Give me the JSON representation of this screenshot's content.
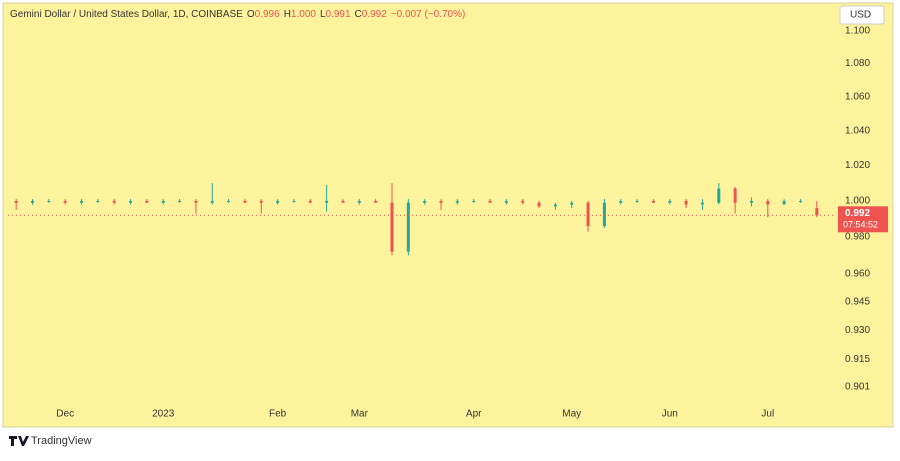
{
  "chart_data": {
    "type": "candlestick",
    "categories": [
      null,
      null,
      null,
      "Dec",
      null,
      null,
      null,
      null,
      null,
      "2023",
      null,
      null,
      null,
      null,
      null,
      null,
      "Feb",
      null,
      null,
      null,
      null,
      "Mar",
      null,
      null,
      null,
      null,
      null,
      null,
      "Apr",
      null,
      null,
      null,
      null,
      null,
      "May",
      null,
      null,
      null,
      null,
      null,
      "Jun",
      null,
      null,
      null,
      null,
      null,
      "Jul",
      null,
      null,
      null
    ],
    "open": [
      1.0,
      0.999,
      1.0,
      1.0,
      0.999,
      1.0,
      1.0,
      0.999,
      1.0,
      0.999,
      1.0,
      1.0,
      0.999,
      1.0,
      1.0,
      1.0,
      0.999,
      1.0,
      1.0,
      0.999,
      1.0,
      0.999,
      1.0,
      0.999,
      0.972,
      0.999,
      1.0,
      0.999,
      1.0,
      1.0,
      0.999,
      1.0,
      0.999,
      0.997,
      0.998,
      0.999,
      0.986,
      0.999,
      1.0,
      1.0,
      0.999,
      1.0,
      0.998,
      0.999,
      1.007,
      0.999,
      1.0,
      0.998,
      1.0,
      0.996
    ],
    "high": [
      1.001,
      1.001,
      1.001,
      1.001,
      1.001,
      1.001,
      1.001,
      1.001,
      1.001,
      1.001,
      1.001,
      1.001,
      1.01,
      1.001,
      1.001,
      1.001,
      1.001,
      1.001,
      1.001,
      1.009,
      1.001,
      1.001,
      1.001,
      1.01,
      1.001,
      1.001,
      1.001,
      1.001,
      1.001,
      1.001,
      1.001,
      1.001,
      1.0,
      0.999,
      1.0,
      1.0,
      1.001,
      1.001,
      1.001,
      1.001,
      1.001,
      1.001,
      1.001,
      1.01,
      1.008,
      1.002,
      1.001,
      1.001,
      1.001,
      1.0
    ],
    "low": [
      0.995,
      0.998,
      0.999,
      0.998,
      0.998,
      0.999,
      0.998,
      0.998,
      0.999,
      0.998,
      0.999,
      0.993,
      0.998,
      0.999,
      0.999,
      0.993,
      0.998,
      0.999,
      0.999,
      0.994,
      0.999,
      0.998,
      0.999,
      0.97,
      0.97,
      0.998,
      0.995,
      0.998,
      0.999,
      0.999,
      0.998,
      0.998,
      0.996,
      0.995,
      0.996,
      0.983,
      0.985,
      0.998,
      0.999,
      0.999,
      0.998,
      0.996,
      0.995,
      0.998,
      0.993,
      0.997,
      0.991,
      0.998,
      0.999,
      0.991
    ],
    "close": [
      0.999,
      1.0,
      1.0,
      0.999,
      1.0,
      1.0,
      0.999,
      1.0,
      0.999,
      1.0,
      1.0,
      0.999,
      1.0,
      1.0,
      0.999,
      0.999,
      1.0,
      1.0,
      0.999,
      1.0,
      0.999,
      1.0,
      0.999,
      0.972,
      0.999,
      1.0,
      0.999,
      1.0,
      1.0,
      0.999,
      1.0,
      0.999,
      0.997,
      0.998,
      0.999,
      0.986,
      0.999,
      1.0,
      1.0,
      0.999,
      1.0,
      0.998,
      0.999,
      1.007,
      0.999,
      1.0,
      0.998,
      1.0,
      1.0,
      0.992
    ],
    "up_color": "#26a69a",
    "down_color": "#ef5350",
    "log_scale": true,
    "ylim": [
      0.892,
      1.116
    ],
    "yticks": [
      {
        "value": 1.1,
        "label": "1.100"
      },
      {
        "value": 1.08,
        "label": "1.080"
      },
      {
        "value": 1.06,
        "label": "1.060"
      },
      {
        "value": 1.04,
        "label": "1.040"
      },
      {
        "value": 1.02,
        "label": "1.020"
      },
      {
        "value": 1.0,
        "label": "1.000"
      },
      {
        "value": 0.98,
        "label": "0.980"
      },
      {
        "value": 0.96,
        "label": "0.960"
      },
      0.945,
      {
        "value": 0.93,
        "label": "0.930"
      },
      0.915,
      0.901
    ],
    "last_price_label": "0.992",
    "countdown": "07:54:52",
    "currency": "USD"
  },
  "legend": {
    "symbol": "Gemini Dollar / United States Dollar, 1D, COINBASE",
    "items": [
      {
        "key": "O",
        "value": "0.996"
      },
      {
        "key": "H",
        "value": "1.000"
      },
      {
        "key": "L",
        "value": "0.991"
      },
      {
        "key": "C",
        "value": "0.992"
      }
    ],
    "change": "−0.007 (−0.70%)"
  },
  "footer": {
    "brand": "TradingView"
  }
}
